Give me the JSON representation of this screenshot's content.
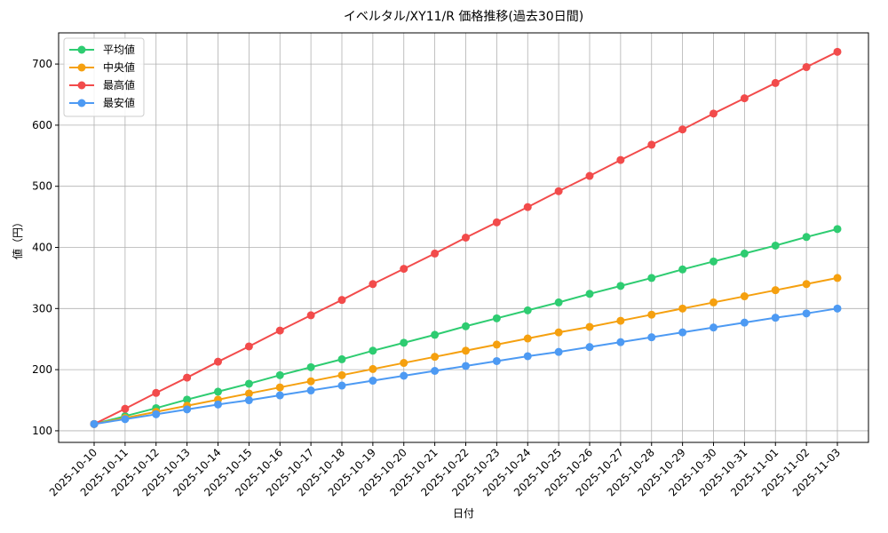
{
  "chart_data": {
    "type": "line",
    "title": "イベルタル/XY11/R 価格推移(過去30日間)",
    "x_label": "日付",
    "y_label": "値（円）",
    "categories": [
      "2025-10-10",
      "2025-10-11",
      "2025-10-12",
      "2025-10-13",
      "2025-10-14",
      "2025-10-15",
      "2025-10-16",
      "2025-10-17",
      "2025-10-18",
      "2025-10-19",
      "2025-10-20",
      "2025-10-21",
      "2025-10-22",
      "2025-10-23",
      "2025-10-24",
      "2025-10-25",
      "2025-10-26",
      "2025-10-27",
      "2025-10-28",
      "2025-10-29",
      "2025-10-30",
      "2025-10-31",
      "2025-11-01",
      "2025-11-02",
      "2025-11-03"
    ],
    "series": [
      {
        "name": "平均値",
        "color": "#2ecc71",
        "values": [
          111,
          124,
          137,
          151,
          164,
          177,
          191,
          204,
          217,
          231,
          244,
          257,
          271,
          284,
          297,
          310,
          324,
          337,
          350,
          364,
          377,
          390,
          403,
          417,
          430
        ]
      },
      {
        "name": "中央値",
        "color": "#f5a00f",
        "values": [
          111,
          121,
          131,
          141,
          151,
          161,
          171,
          181,
          191,
          201,
          211,
          221,
          231,
          241,
          251,
          261,
          270,
          280,
          290,
          300,
          310,
          320,
          330,
          340,
          350
        ]
      },
      {
        "name": "最高値",
        "color": "#f24b4b",
        "values": [
          111,
          136,
          162,
          187,
          213,
          238,
          264,
          289,
          314,
          340,
          365,
          390,
          416,
          441,
          466,
          492,
          517,
          543,
          568,
          593,
          619,
          644,
          669,
          695,
          720
        ]
      },
      {
        "name": "最安値",
        "color": "#4d9af3",
        "values": [
          111,
          119,
          127,
          135,
          143,
          150,
          158,
          166,
          174,
          182,
          190,
          198,
          206,
          214,
          222,
          229,
          237,
          245,
          253,
          261,
          269,
          277,
          285,
          292,
          300
        ]
      }
    ],
    "ylim": [
      81,
      751
    ],
    "yticks": [
      100,
      200,
      300,
      400,
      500,
      600,
      700
    ],
    "grid": true,
    "legend": "upper left"
  }
}
